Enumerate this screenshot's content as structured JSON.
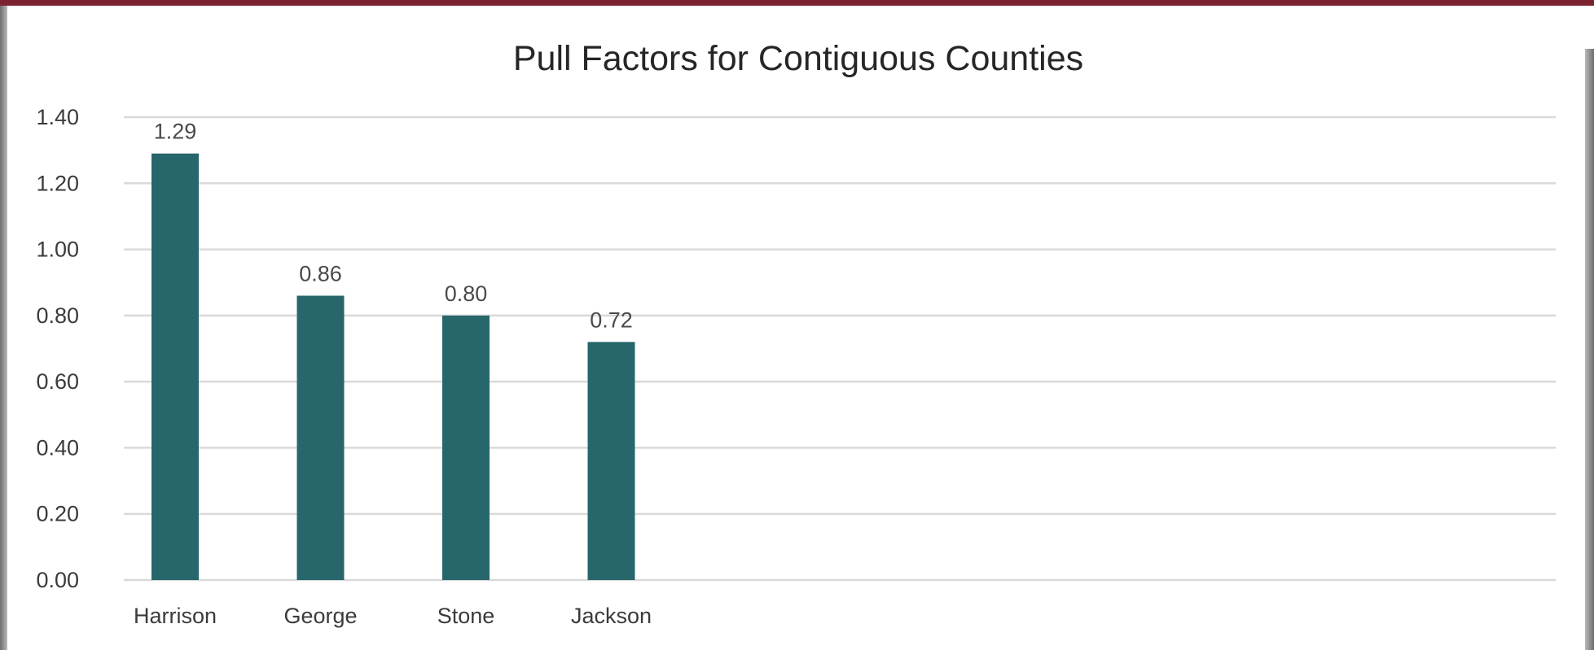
{
  "colors": {
    "frame_top": "#7b2230",
    "bar": "#27666b"
  },
  "chart_data": {
    "type": "bar",
    "title": "Pull Factors for Contiguous Counties",
    "xlabel": "",
    "ylabel": "",
    "categories": [
      "Harrison",
      "George",
      "Stone",
      "Jackson"
    ],
    "values": [
      1.29,
      0.86,
      0.8,
      0.72
    ],
    "data_labels": [
      "1.29",
      "0.86",
      "0.80",
      "0.72"
    ],
    "ylim": [
      0,
      1.4
    ],
    "y_ticks": [
      "0.00",
      "0.20",
      "0.40",
      "0.60",
      "0.80",
      "1.00",
      "1.20",
      "1.40"
    ],
    "grid": true,
    "legend": "none"
  }
}
